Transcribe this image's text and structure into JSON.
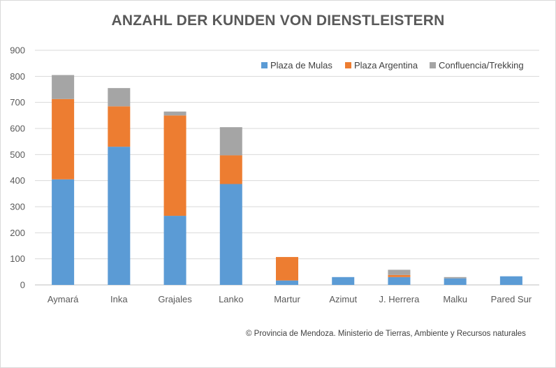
{
  "chart_data": {
    "type": "bar",
    "stacked": true,
    "title": "ANZAHL DER KUNDEN VON DIENSTLEISTERN",
    "categories": [
      "Aymará",
      "Inka",
      "Grajales",
      "Lanko",
      "Martur",
      "Azimut",
      "J. Herrera",
      "Malku",
      "Pared Sur"
    ],
    "series": [
      {
        "name": "Plaza de Mulas",
        "color": "#5b9bd5",
        "values": [
          405,
          530,
          265,
          387,
          17,
          30,
          30,
          25,
          33
        ]
      },
      {
        "name": "Plaza Argentina",
        "color": "#ed7d31",
        "values": [
          308,
          155,
          385,
          110,
          90,
          0,
          8,
          0,
          0
        ]
      },
      {
        "name": "Confluencia/Trekking",
        "color": "#a5a5a5",
        "values": [
          92,
          70,
          15,
          108,
          0,
          0,
          20,
          5,
          0
        ]
      }
    ],
    "ylim": [
      0,
      900
    ],
    "yticks": [
      0,
      100,
      200,
      300,
      400,
      500,
      600,
      700,
      800,
      900
    ],
    "grid": true,
    "legend": "top-right",
    "source": "© Provincia de Mendoza. Ministerio de Tierras, Ambiente y Recursos naturales"
  }
}
